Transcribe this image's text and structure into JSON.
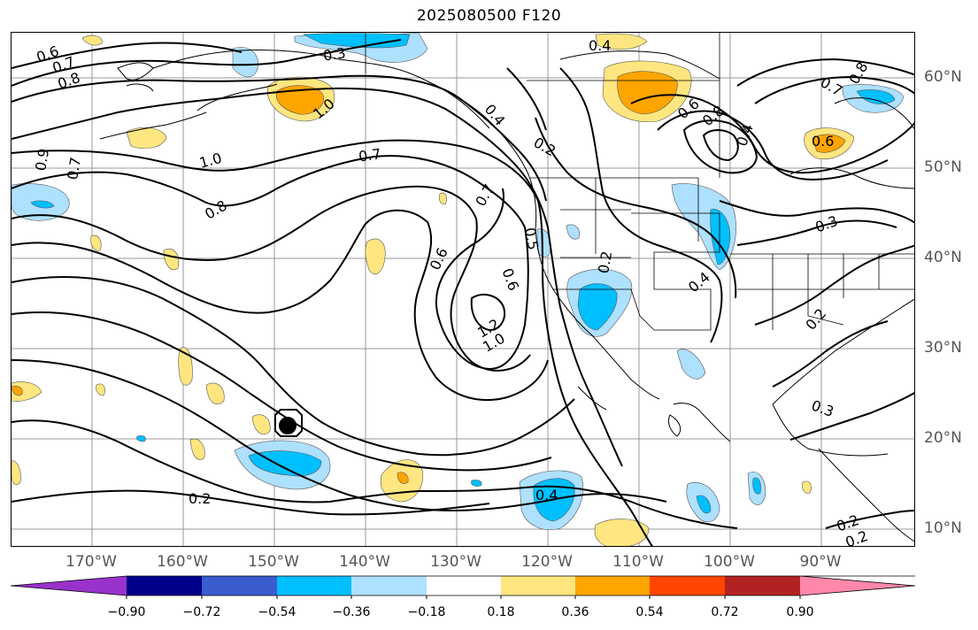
{
  "title": "2025080500 F120",
  "lon_labels": [
    "170°W",
    "160°W",
    "150°W",
    "140°W",
    "130°W",
    "120°W",
    "110°W",
    "100°W",
    "90°W"
  ],
  "lat_labels": [
    "60°N",
    "50°N",
    "40°N",
    "30°N",
    "20°N",
    "10°N"
  ],
  "contour_labels": [
    "0.6",
    "0.7",
    "0.8",
    "0.3",
    "1.0",
    "0.9",
    "0.7",
    "1.0",
    "0.8",
    "0.7",
    "0.4",
    "0.2",
    "0.7",
    "0.6",
    "1.2",
    "1.0",
    "0.6",
    "0.5",
    "0.4",
    "0.2",
    "0.2",
    "0.4",
    "0.6",
    "0.8",
    "0.7",
    "0.8",
    "0.6",
    "0.4",
    "0.3",
    "0.2",
    "0.3",
    "0.2",
    "0.2",
    "0.4"
  ],
  "colorbar": {
    "tick_labels": [
      "−0.90",
      "−0.72",
      "−0.54",
      "−0.36",
      "−0.18",
      "0.18",
      "0.36",
      "0.54",
      "0.72",
      "0.90"
    ],
    "colors": [
      "#9932cc",
      "#00008b",
      "#3a5ccc",
      "#00bfff",
      "#aee0ff",
      "#ffffff",
      "#ffe680",
      "#ffa500",
      "#ff4500",
      "#b22222",
      "#ff88aa"
    ]
  }
}
